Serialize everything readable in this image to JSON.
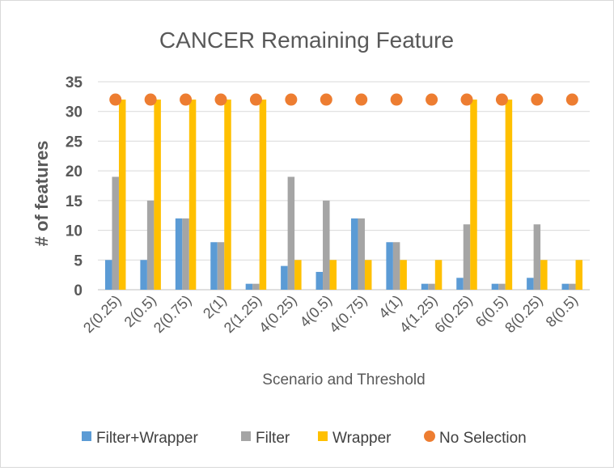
{
  "chart_data": {
    "type": "bar",
    "title": "CANCER Remaining  Feature",
    "xlabel": "Scenario and Threshold",
    "ylabel": "#  of features",
    "ylim": [
      0,
      35
    ],
    "yticks": [
      0,
      5,
      10,
      15,
      20,
      25,
      30,
      35
    ],
    "grid": true,
    "legend_position": "bottom",
    "categories": [
      "2(0.25)",
      "2(0.5)",
      "2(0.75)",
      "2(1)",
      "2(1.25)",
      "4(0.25)",
      "4(0.5)",
      "4(0.75)",
      "4(1)",
      "4(1.25)",
      "6(0.25)",
      "6(0.5)",
      "8(0.25)",
      "8(0.5)"
    ],
    "series": [
      {
        "name": "Filter+Wrapper",
        "kind": "bar",
        "color": "#5B9BD5",
        "values": [
          5,
          5,
          12,
          8,
          1,
          4,
          3,
          12,
          8,
          1,
          2,
          1,
          2,
          1
        ]
      },
      {
        "name": "Filter",
        "kind": "bar",
        "color": "#A5A5A5",
        "values": [
          19,
          15,
          12,
          8,
          1,
          19,
          15,
          12,
          8,
          1,
          11,
          1,
          11,
          1
        ]
      },
      {
        "name": "Wrapper",
        "kind": "bar",
        "color": "#FFC000",
        "values": [
          32,
          32,
          32,
          32,
          32,
          5,
          5,
          5,
          5,
          5,
          32,
          32,
          5,
          5
        ]
      },
      {
        "name": "No Selection",
        "kind": "marker",
        "color": "#ED7D31",
        "values": [
          32,
          32,
          32,
          32,
          32,
          32,
          32,
          32,
          32,
          32,
          32,
          32,
          32,
          32
        ]
      }
    ]
  }
}
